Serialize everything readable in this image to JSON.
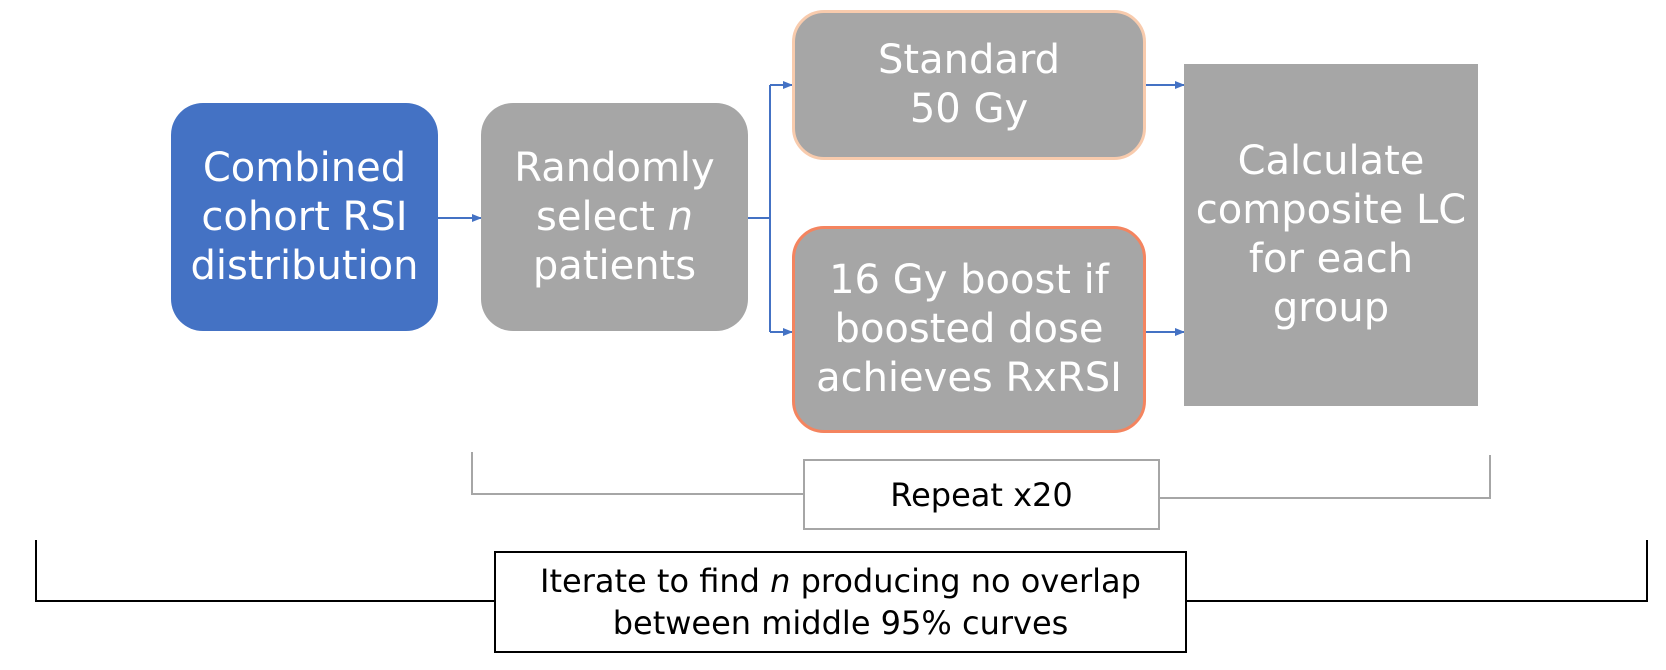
{
  "boxes": {
    "combined": {
      "lines": [
        "Combined",
        "cohort RSI",
        "distribution"
      ]
    },
    "randomly": {
      "line1": "Randomly",
      "line2_pre": "select ",
      "line2_italic": "n",
      "line3": "patients"
    },
    "standard": {
      "lines": [
        "Standard",
        "50 Gy"
      ]
    },
    "boost": {
      "lines": [
        "16 Gy boost if",
        "boosted dose",
        "achieves RxRSI"
      ]
    },
    "calculate": {
      "lines": [
        "Calculate",
        "composite LC",
        "for each",
        "group"
      ]
    }
  },
  "labels": {
    "repeat": "Repeat x20",
    "iterate_pre": "Iterate to find ",
    "iterate_italic": "n",
    "iterate_post": " producing no overlap",
    "iterate_line2": "between middle 95% curves"
  },
  "colors": {
    "blue_box": "#4472c4",
    "gray_box": "#a6a6a6",
    "standard_border": "#f8cbad",
    "boost_border": "#f4845f",
    "arrow": "#4472c4",
    "bracket_gray": "#a6a6a6",
    "bracket_black": "#000000"
  }
}
